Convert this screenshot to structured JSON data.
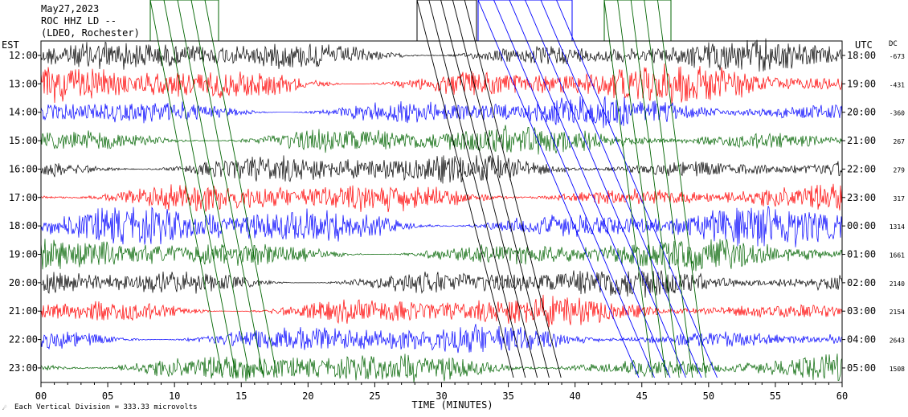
{
  "header": {
    "date": "May27,2023",
    "station": "ROC HHZ LD --",
    "network": "(LDEO, Rochester)"
  },
  "labels": {
    "left_timezone": "EST",
    "right_timezone": "UTC",
    "dc_header": "DC",
    "xlabel": "TIME (MINUTES)",
    "footer": "Each Vertical Division =  333.33 microvolts"
  },
  "chart_data": {
    "type": "line",
    "xlim": [
      0,
      60
    ],
    "x_ticks": [
      "00",
      "05",
      "10",
      "15",
      "20",
      "25",
      "30",
      "35",
      "40",
      "45",
      "50",
      "55",
      "60"
    ],
    "left_hours": [
      "12:00",
      "13:00",
      "14:00",
      "15:00",
      "16:00",
      "17:00",
      "18:00",
      "19:00",
      "20:00",
      "21:00",
      "22:00",
      "23:00"
    ],
    "right_hours": [
      "18:00",
      "19:00",
      "20:00",
      "21:00",
      "22:00",
      "23:00",
      "00:00",
      "01:00",
      "02:00",
      "03:00",
      "04:00",
      "05:00"
    ],
    "dc_offsets": [
      "-673",
      "-431",
      "-360",
      "267",
      "279",
      "317",
      "1314",
      "1661",
      "2140",
      "2154",
      "2643",
      "1508"
    ],
    "trace_colors": [
      "#000000",
      "#ff0000",
      "#0000ff",
      "#006400"
    ],
    "grid": false
  }
}
